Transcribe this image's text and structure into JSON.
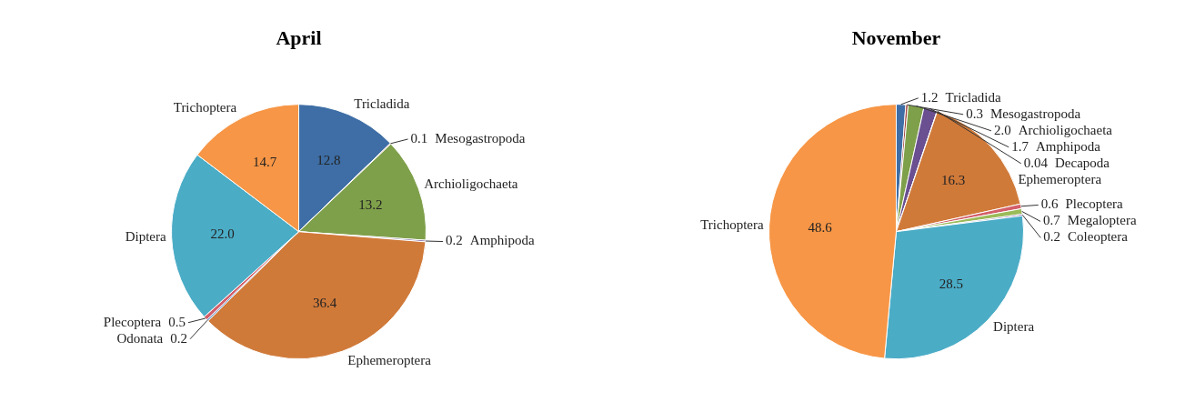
{
  "chart_data": [
    {
      "type": "pie",
      "title": "April",
      "categories": [
        "Tricladida",
        "Mesogastropoda",
        "Archioligochaeta",
        "Amphipoda",
        "Ephemeroptera",
        "Odonata",
        "Plecoptera",
        "Diptera",
        "Trichoptera"
      ],
      "values": [
        12.8,
        0.1,
        13.2,
        0.2,
        36.4,
        0.2,
        0.5,
        22.0,
        14.7
      ],
      "value_labels": [
        "12.8",
        "0.1",
        "13.2",
        "0.2",
        "36.4",
        "0.2",
        "0.5",
        "22.0",
        "14.7"
      ],
      "colors": [
        "#3e6ea5",
        "#a0403c",
        "#7fa04a",
        "#6a4f91",
        "#d07a3a",
        "#4f81bd",
        "#d35f6a",
        "#4bacc6",
        "#f79646"
      ],
      "legend": false
    },
    {
      "type": "pie",
      "title": "November",
      "categories": [
        "Tricladida",
        "Mesogastropoda",
        "Archioligochaeta",
        "Amphipoda",
        "Decapoda",
        "Ephemeroptera",
        "Plecoptera",
        "Megaloptera",
        "Coleoptera",
        "Diptera",
        "Trichoptera"
      ],
      "values": [
        1.2,
        0.3,
        2.0,
        1.7,
        0.04,
        16.3,
        0.6,
        0.7,
        0.2,
        28.5,
        48.6
      ],
      "value_labels": [
        "1.2",
        "0.3",
        "2.0",
        "1.7",
        "0.04",
        "16.3",
        "0.6",
        "0.7",
        "0.2",
        "28.5",
        "48.6"
      ],
      "colors": [
        "#3e6ea5",
        "#a0403c",
        "#7fa04a",
        "#6a4f91",
        "#3fa3c0",
        "#d07a3a",
        "#d35f6a",
        "#9bbb59",
        "#8064a2",
        "#4bacc6",
        "#f79646"
      ],
      "legend": false
    }
  ]
}
